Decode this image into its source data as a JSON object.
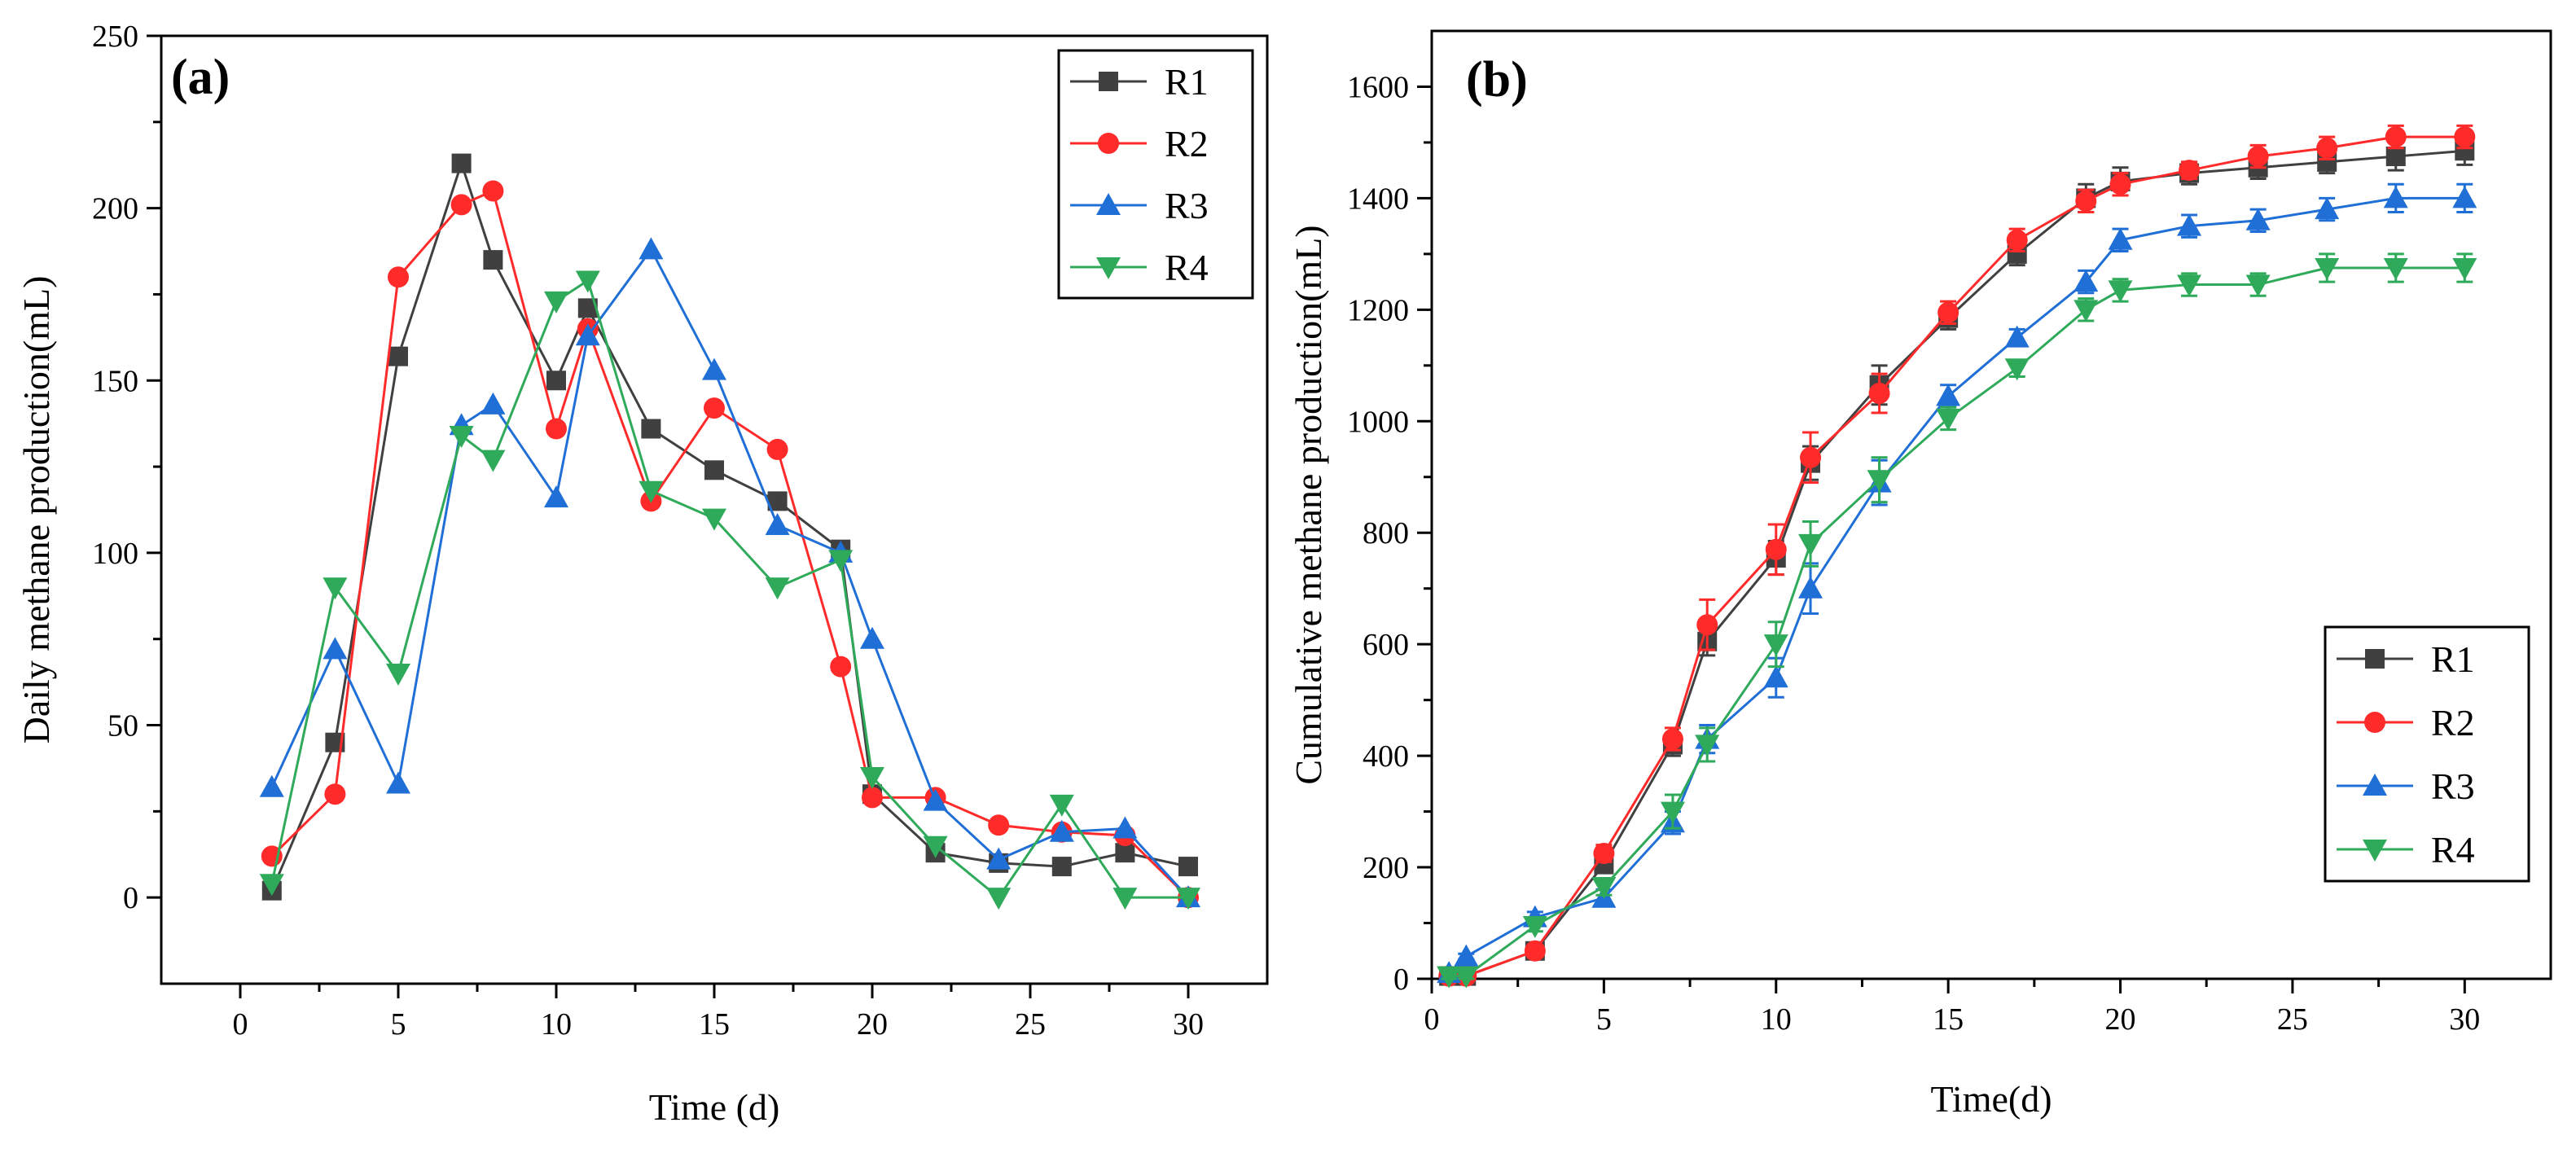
{
  "chart_data": [
    {
      "type": "line",
      "panel_label": "(a)",
      "xlabel": "Time (d)",
      "ylabel": "Daily methane production(mL)",
      "xlim": [
        -2.5,
        32.5
      ],
      "ylim": [
        -25,
        250
      ],
      "xticks": [
        0,
        5,
        10,
        15,
        20,
        25,
        30
      ],
      "yticks": [
        0,
        50,
        100,
        150,
        200,
        250
      ],
      "xtick_labels": [
        "0",
        "5",
        "10",
        "15",
        "20",
        "25",
        "30"
      ],
      "ytick_labels": [
        "0",
        "50",
        "100",
        "150",
        "200",
        "250"
      ],
      "legend_position": "top-right",
      "x": [
        1,
        3,
        5,
        7,
        8,
        10,
        11,
        13,
        15,
        17,
        19,
        20,
        22,
        24,
        26,
        28,
        30
      ],
      "series": [
        {
          "name": "R1",
          "color": "#404040",
          "marker": "square",
          "values": [
            2,
            45,
            157,
            213,
            185,
            150,
            171,
            136,
            124,
            115,
            101,
            30,
            13,
            10,
            9,
            13,
            9
          ]
        },
        {
          "name": "R2",
          "color": "#ff2a2a",
          "marker": "circle",
          "values": [
            12,
            30,
            180,
            201,
            205,
            136,
            165,
            115,
            142,
            130,
            67,
            29,
            29,
            21,
            19,
            18,
            0
          ]
        },
        {
          "name": "R3",
          "color": "#1f6fd6",
          "marker": "triangle-up",
          "values": [
            32,
            72,
            33,
            137,
            143,
            116,
            163,
            188,
            153,
            108,
            100,
            75,
            28,
            11,
            19,
            20,
            0
          ]
        },
        {
          "name": "R4",
          "color": "#2eaa5a",
          "marker": "triangle-down",
          "values": [
            4,
            90,
            65,
            134,
            127,
            173,
            179,
            118,
            110,
            90,
            98,
            35,
            15,
            0,
            27,
            0,
            0
          ]
        }
      ]
    },
    {
      "type": "line",
      "panel_label": "(b)",
      "xlabel": "Time(d)",
      "ylabel": "Cumulative methane production(mL)",
      "xlim": [
        0,
        32.5
      ],
      "ylim": [
        0,
        1700
      ],
      "xticks": [
        0,
        5,
        10,
        15,
        20,
        25,
        30
      ],
      "yticks": [
        0,
        200,
        400,
        600,
        800,
        1000,
        1200,
        1400,
        1600
      ],
      "xtick_labels": [
        "0",
        "5",
        "10",
        "15",
        "20",
        "25",
        "30"
      ],
      "ytick_labels": [
        "0",
        "200",
        "400",
        "600",
        "800",
        "1000",
        "1200",
        "1400",
        "1600"
      ],
      "legend_position": "bottom-right",
      "x": [
        0.5,
        1,
        3,
        5,
        7,
        8,
        10,
        11,
        13,
        15,
        17,
        19,
        20,
        22,
        24,
        26,
        28,
        30
      ],
      "series": [
        {
          "name": "R1",
          "color": "#404040",
          "marker": "square",
          "values": [
            5,
            5,
            50,
            205,
            420,
            605,
            755,
            925,
            1065,
            1185,
            1300,
            1400,
            1430,
            1445,
            1455,
            1465,
            1475,
            1485
          ],
          "errors": [
            5,
            5,
            10,
            15,
            20,
            25,
            30,
            30,
            35,
            20,
            20,
            25,
            25,
            20,
            20,
            20,
            25,
            25
          ]
        },
        {
          "name": "R2",
          "color": "#ff2a2a",
          "marker": "circle",
          "values": [
            5,
            5,
            50,
            225,
            430,
            635,
            770,
            935,
            1050,
            1195,
            1325,
            1395,
            1425,
            1450,
            1475,
            1490,
            1510,
            1510
          ],
          "errors": [
            5,
            5,
            10,
            15,
            20,
            45,
            45,
            45,
            35,
            20,
            20,
            20,
            20,
            15,
            20,
            20,
            20,
            20
          ]
        },
        {
          "name": "R3",
          "color": "#1f6fd6",
          "marker": "triangle-up",
          "values": [
            10,
            40,
            110,
            145,
            280,
            430,
            540,
            700,
            890,
            1045,
            1150,
            1250,
            1325,
            1350,
            1360,
            1380,
            1400,
            1400
          ],
          "errors": [
            5,
            5,
            10,
            15,
            20,
            25,
            35,
            45,
            40,
            20,
            15,
            20,
            20,
            20,
            20,
            20,
            25,
            25
          ]
        },
        {
          "name": "R4",
          "color": "#2eaa5a",
          "marker": "triangle-down",
          "values": [
            5,
            5,
            95,
            165,
            300,
            420,
            600,
            780,
            895,
            1005,
            1095,
            1200,
            1235,
            1245,
            1245,
            1275,
            1275,
            1275
          ],
          "errors": [
            5,
            5,
            10,
            15,
            30,
            30,
            40,
            40,
            40,
            20,
            15,
            20,
            20,
            20,
            20,
            25,
            25,
            25
          ]
        }
      ]
    }
  ]
}
